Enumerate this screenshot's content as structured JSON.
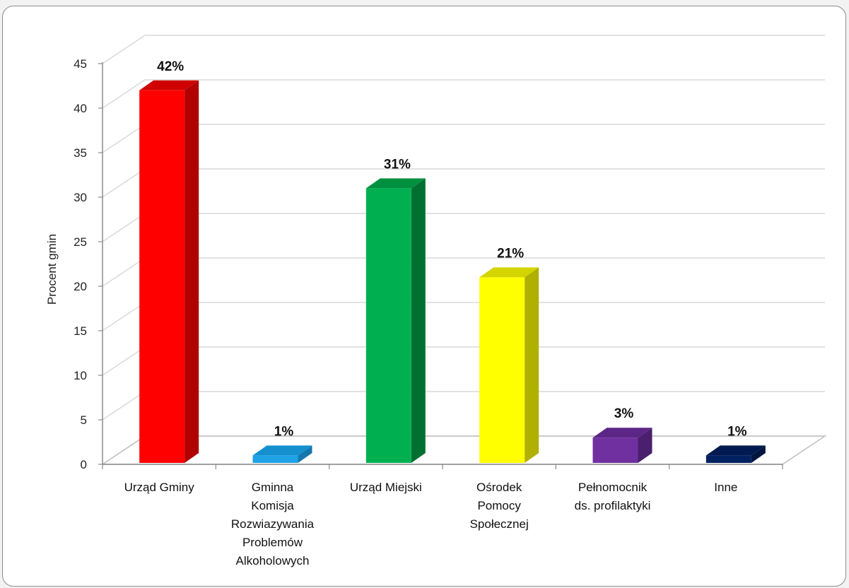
{
  "chart_data": {
    "type": "bar",
    "style": "3d-column",
    "ylabel": "Procent gmin",
    "xlabel": "",
    "ylim": [
      0,
      45
    ],
    "ytick_step": 5,
    "grid": true,
    "legend": "none",
    "categories": [
      "Urząd Gminy",
      "Gminna Komisja Rozwiazywania Problemów Alkoholowych",
      "Urząd Miejski",
      "Ośrodek Pomocy Społecznej",
      "Pełnomocnik ds. profilaktyki",
      "Inne"
    ],
    "category_lines": [
      [
        "Urząd Gminy"
      ],
      [
        "Gminna",
        "Komisja",
        "Rozwiazywania",
        "Problemów",
        "Alkoholowych"
      ],
      [
        "Urząd Miejski"
      ],
      [
        "Ośrodek",
        "Pomocy",
        "Społecznej"
      ],
      [
        "Pełnomocnik",
        "ds. profilaktyki"
      ],
      [
        "Inne"
      ]
    ],
    "values": [
      42,
      1,
      31,
      21,
      3,
      1
    ],
    "data_labels": [
      "42%",
      "1%",
      "31%",
      "21%",
      "3%",
      "1%"
    ],
    "colors": [
      "#ff0000",
      "#1fa3e6",
      "#00b050",
      "#ffff00",
      "#7030a0",
      "#002060"
    ],
    "side_colors": [
      "#b00000",
      "#1478ad",
      "#007030",
      "#b0b000",
      "#4a1f6e",
      "#001540"
    ],
    "top_colors": [
      "#d00000",
      "#1590cf",
      "#009040",
      "#d4d400",
      "#5c2686",
      "#001a50"
    ]
  }
}
